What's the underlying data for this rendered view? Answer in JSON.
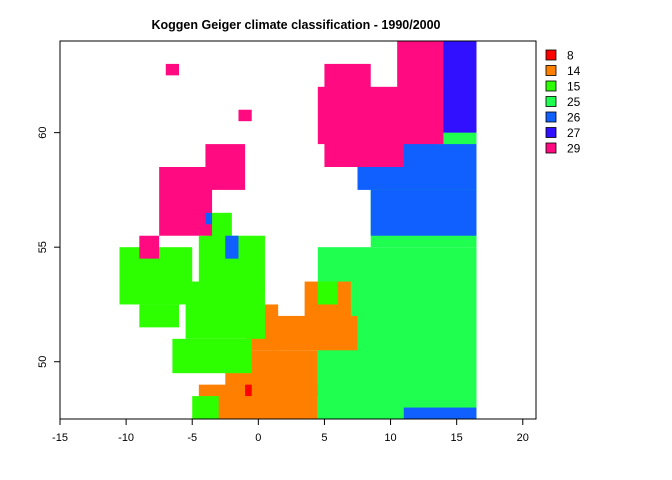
{
  "chart_data": {
    "type": "heatmap",
    "title": "Koggen Geiger climate classification - 1990/2000",
    "xlabel": "",
    "ylabel": "",
    "xlim": [
      -15,
      21
    ],
    "ylim": [
      47.5,
      64
    ],
    "x_ticks": [
      "-15",
      "-10",
      "-5",
      "0",
      "5",
      "10",
      "15",
      "20"
    ],
    "y_ticks": [
      "50",
      "55",
      "60"
    ],
    "legend_position": "right",
    "cell_size_deg": 0.5,
    "legend": [
      {
        "code": "8",
        "label": "8",
        "color": "#ff0000"
      },
      {
        "code": "14",
        "label": "14",
        "color": "#ff8000"
      },
      {
        "code": "15",
        "label": "15",
        "color": "#2eff00"
      },
      {
        "code": "25",
        "label": "25",
        "color": "#1fff50"
      },
      {
        "code": "26",
        "label": "26",
        "color": "#1060ff"
      },
      {
        "code": "27",
        "label": "27",
        "color": "#3010ff"
      },
      {
        "code": "29",
        "label": "29",
        "color": "#ff0a80"
      }
    ],
    "regions": [
      {
        "class": "25",
        "x": [
          4.5,
          16.5
        ],
        "y": [
          47.5,
          55
        ]
      },
      {
        "class": "25",
        "x": [
          8.5,
          16.5
        ],
        "y": [
          55,
          59
        ]
      },
      {
        "class": "26",
        "x": [
          7.5,
          16.5
        ],
        "y": [
          57.5,
          61
        ]
      },
      {
        "class": "26",
        "x": [
          8.5,
          16.5
        ],
        "y": [
          55.5,
          57.5
        ]
      },
      {
        "class": "25",
        "x": [
          13.5,
          16.5
        ],
        "y": [
          59.5,
          60.5
        ]
      },
      {
        "class": "27",
        "x": [
          11,
          16.5
        ],
        "y": [
          60,
          64
        ]
      },
      {
        "class": "29",
        "x": [
          4.5,
          14
        ],
        "y": [
          59.5,
          62
        ]
      },
      {
        "class": "29",
        "x": [
          5,
          11
        ],
        "y": [
          58.5,
          60.5
        ]
      },
      {
        "class": "29",
        "x": [
          10.5,
          14
        ],
        "y": [
          61,
          64
        ]
      },
      {
        "class": "29",
        "x": [
          5,
          8.5
        ],
        "y": [
          61,
          63
        ]
      },
      {
        "class": "26",
        "x": [
          11,
          16.5
        ],
        "y": [
          47.5,
          48
        ]
      },
      {
        "class": "14",
        "x": [
          -4.5,
          4.5
        ],
        "y": [
          47.5,
          49
        ]
      },
      {
        "class": "14",
        "x": [
          -2.5,
          4.5
        ],
        "y": [
          48.5,
          50.5
        ]
      },
      {
        "class": "14",
        "x": [
          1,
          7.5
        ],
        "y": [
          50.5,
          52
        ]
      },
      {
        "class": "14",
        "x": [
          3.5,
          7
        ],
        "y": [
          51.5,
          53.5
        ]
      },
      {
        "class": "14",
        "x": [
          -1,
          1.5
        ],
        "y": [
          50.5,
          52.5
        ]
      },
      {
        "class": "8",
        "x": [
          -1,
          -0.5
        ],
        "y": [
          48.5,
          49
        ]
      },
      {
        "class": "15",
        "x": [
          -5,
          -3
        ],
        "y": [
          47.5,
          48.5
        ]
      },
      {
        "class": "15",
        "x": [
          -6.5,
          -0.5
        ],
        "y": [
          49.5,
          51
        ]
      },
      {
        "class": "15",
        "x": [
          -5.5,
          0.5
        ],
        "y": [
          51,
          53.5
        ]
      },
      {
        "class": "15",
        "x": [
          -4.5,
          0.5
        ],
        "y": [
          53,
          55.5
        ]
      },
      {
        "class": "15",
        "x": [
          -4,
          -2
        ],
        "y": [
          55,
          56.5
        ]
      },
      {
        "class": "15",
        "x": [
          -10.5,
          -5
        ],
        "y": [
          52.5,
          55
        ]
      },
      {
        "class": "15",
        "x": [
          -9,
          -6
        ],
        "y": [
          51.5,
          52.5
        ]
      },
      {
        "class": "15",
        "x": [
          4.5,
          6
        ],
        "y": [
          52.5,
          53.5
        ]
      },
      {
        "class": "29",
        "x": [
          -7.5,
          -3.5
        ],
        "y": [
          55.5,
          58.5
        ]
      },
      {
        "class": "29",
        "x": [
          -4,
          -1
        ],
        "y": [
          57.5,
          59.5
        ]
      },
      {
        "class": "29",
        "x": [
          -9,
          -7.5
        ],
        "y": [
          54.5,
          55.5
        ]
      },
      {
        "class": "29",
        "x": [
          -7,
          -6
        ],
        "y": [
          62.5,
          63
        ]
      },
      {
        "class": "29",
        "x": [
          -1.5,
          -0.5
        ],
        "y": [
          60.5,
          61
        ]
      },
      {
        "class": "26",
        "x": [
          -2.5,
          -1.5
        ],
        "y": [
          54.5,
          55.5
        ]
      },
      {
        "class": "26",
        "x": [
          -4,
          -3.5
        ],
        "y": [
          56,
          56.5
        ]
      }
    ]
  }
}
